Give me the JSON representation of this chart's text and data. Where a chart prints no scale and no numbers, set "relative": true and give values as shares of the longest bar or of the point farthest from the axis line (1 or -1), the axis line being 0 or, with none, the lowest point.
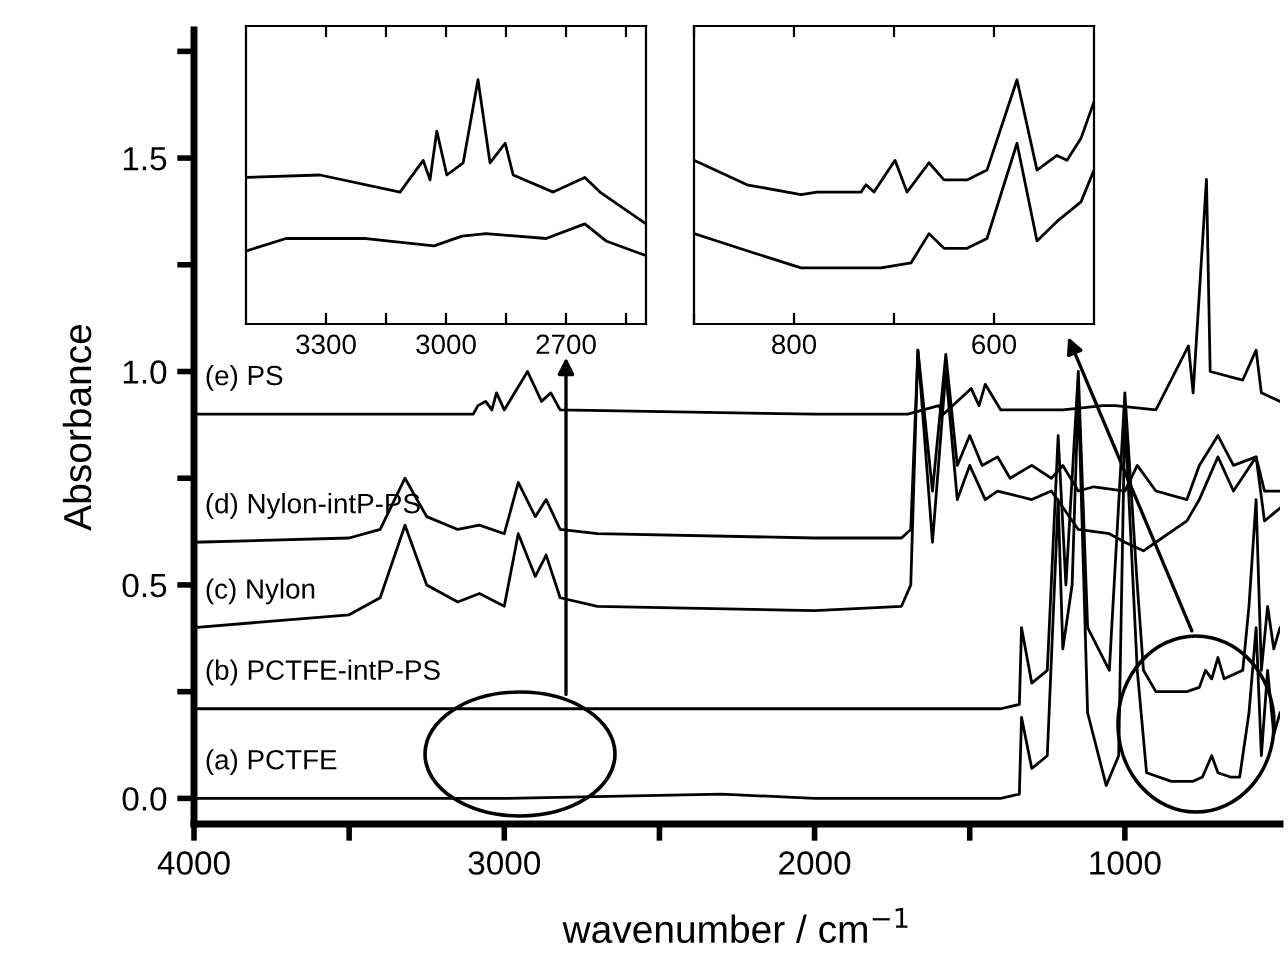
{
  "chart_data": [
    {
      "type": "line",
      "xlabel": "wavenumber / cm$^{−1}$",
      "ylabel": "Absorbance",
      "xlim": [
        4000,
        500
      ],
      "ylim": [
        -0.06,
        1.8
      ],
      "xticks": [
        4000,
        {
          "value": 3500,
          "label": null
        },
        3000,
        {
          "value": 2500,
          "label": null
        },
        2000,
        {
          "value": 1500,
          "label": null
        },
        1000
      ],
      "yticks": [
        {
          "value": 0,
          "label": "0.0"
        },
        {
          "value": 0.25,
          "label": null
        },
        {
          "value": 0.5,
          "label": "0.5"
        },
        {
          "value": 0.75,
          "label": null
        },
        {
          "value": 1,
          "label": "1.0"
        },
        {
          "value": 1.25,
          "label": null
        },
        {
          "value": 1.5,
          "label": "1.5"
        },
        {
          "value": 1.75,
          "label": null
        }
      ],
      "grid": false,
      "legend": false,
      "line_style": "solid",
      "marker": "none",
      "series": [
        {
          "name": "(a) PCTFE",
          "color": "#000000",
          "x": [
            4000,
            3000,
            2300,
            2000,
            1400,
            1340,
            1333,
            1300,
            1250,
            1215,
            1200,
            1170,
            1150,
            1120,
            1060,
            1020,
            1000,
            960,
            930,
            850,
            780,
            750,
            720,
            700,
            660,
            630,
            600,
            577,
            560,
            540,
            520,
            500
          ],
          "values": [
            0,
            0,
            0.01,
            0,
            0,
            0.01,
            0.19,
            0.07,
            0.1,
            0.7,
            0.35,
            0.5,
            0.95,
            0.2,
            0.03,
            0.1,
            0.9,
            0.3,
            0.06,
            0.04,
            0.04,
            0.05,
            0.1,
            0.06,
            0.05,
            0.05,
            0.2,
            0.4,
            0.1,
            0.3,
            0.15,
            0.2
          ]
        },
        {
          "name": "(b) PCTFE-intP-PS",
          "color": "#000000",
          "x": [
            4000,
            3000,
            2000,
            1400,
            1340,
            1333,
            1300,
            1250,
            1215,
            1190,
            1150,
            1120,
            1050,
            1000,
            960,
            940,
            900,
            850,
            800,
            760,
            740,
            720,
            700,
            680,
            620,
            600,
            577,
            560,
            540,
            520,
            500
          ],
          "values": [
            0.21,
            0.21,
            0.21,
            0.21,
            0.22,
            0.4,
            0.27,
            0.3,
            0.85,
            0.5,
            1.0,
            0.4,
            0.3,
            0.95,
            0.5,
            0.3,
            0.25,
            0.25,
            0.25,
            0.26,
            0.3,
            0.28,
            0.33,
            0.28,
            0.3,
            0.45,
            0.7,
            0.3,
            0.45,
            0.35,
            0.4
          ]
        },
        {
          "name": "(c) Nylon",
          "color": "#000000",
          "x": [
            4000,
            3500,
            3400,
            3320,
            3250,
            3150,
            3080,
            3000,
            2955,
            2900,
            2865,
            2820,
            2700,
            2000,
            1720,
            1690,
            1667,
            1620,
            1577,
            1540,
            1500,
            1450,
            1410,
            1300,
            1237,
            1150,
            1050,
            1000,
            940,
            900,
            800,
            760,
            700,
            650,
            577,
            550,
            500
          ],
          "values": [
            0.4,
            0.43,
            0.47,
            0.64,
            0.5,
            0.46,
            0.48,
            0.45,
            0.62,
            0.52,
            0.57,
            0.47,
            0.45,
            0.44,
            0.45,
            0.5,
            1.05,
            0.6,
            1.0,
            0.7,
            0.78,
            0.7,
            0.72,
            0.7,
            0.72,
            0.63,
            0.62,
            0.6,
            0.58,
            0.6,
            0.65,
            0.7,
            0.8,
            0.72,
            0.8,
            0.65,
            0.68
          ]
        },
        {
          "name": "(d) Nylon-intP-PS",
          "color": "#000000",
          "x": [
            4000,
            3500,
            3400,
            3320,
            3250,
            3150,
            3080,
            3000,
            2955,
            2900,
            2865,
            2820,
            2700,
            2000,
            1720,
            1690,
            1667,
            1620,
            1577,
            1540,
            1500,
            1460,
            1410,
            1370,
            1300,
            1237,
            1200,
            1150,
            1100,
            1000,
            960,
            900,
            800,
            760,
            700,
            650,
            577,
            550,
            500
          ],
          "values": [
            0.6,
            0.61,
            0.63,
            0.75,
            0.66,
            0.63,
            0.64,
            0.62,
            0.74,
            0.66,
            0.7,
            0.63,
            0.62,
            0.61,
            0.61,
            0.63,
            1.05,
            0.72,
            1.04,
            0.78,
            0.85,
            0.78,
            0.8,
            0.75,
            0.78,
            0.75,
            0.78,
            0.72,
            0.73,
            0.72,
            0.78,
            0.72,
            0.7,
            0.78,
            0.85,
            0.78,
            0.8,
            0.72,
            0.72
          ]
        },
        {
          "name": "(e) PS",
          "color": "#000000",
          "x": [
            4000,
            3300,
            3100,
            3085,
            3060,
            3040,
            3025,
            3000,
            2925,
            2880,
            2850,
            2820,
            2000,
            1700,
            1600,
            1585,
            1495,
            1470,
            1450,
            1400,
            1200,
            1070,
            1030,
            900,
            795,
            780,
            737,
            725,
            620,
            577,
            560,
            500
          ],
          "values": [
            0.9,
            0.9,
            0.9,
            0.92,
            0.93,
            0.91,
            0.95,
            0.91,
            1.0,
            0.93,
            0.95,
            0.91,
            0.9,
            0.9,
            0.92,
            0.9,
            0.96,
            0.92,
            0.97,
            0.91,
            0.91,
            0.92,
            0.92,
            0.91,
            1.06,
            0.95,
            1.45,
            1.0,
            0.98,
            1.05,
            0.95,
            0.93
          ]
        }
      ]
    },
    {
      "type": "line",
      "relative": true,
      "xlim": [
        3500,
        2500
      ],
      "xticks": [
        3300,
        {
          "value": 3150,
          "label": null
        },
        3000,
        {
          "value": 2850,
          "label": null
        },
        2700,
        {
          "value": 2550,
          "label": null
        }
      ],
      "grid": false,
      "legend": false,
      "tick_labels": "x",
      "series": [
        {
          "color": "#000000",
          "x": [
            3498,
            3315,
            3115,
            3057,
            3040,
            3023,
            2998,
            2957,
            2920,
            2890,
            2852,
            2832,
            2732,
            2653,
            2615,
            2500
          ],
          "values": [
            0.6,
            0.61,
            0.54,
            0.67,
            0.59,
            0.79,
            0.61,
            0.66,
            1.0,
            0.66,
            0.74,
            0.61,
            0.54,
            0.6,
            0.54,
            0.41
          ]
        },
        {
          "color": "#000000",
          "x": [
            3498,
            3400,
            3200,
            3030,
            2960,
            2900,
            2750,
            2653,
            2600,
            2500
          ],
          "values": [
            0.3,
            0.35,
            0.35,
            0.32,
            0.36,
            0.37,
            0.35,
            0.41,
            0.34,
            0.28
          ]
        }
      ]
    },
    {
      "type": "line",
      "relative": true,
      "xlim": [
        900,
        500
      ],
      "xticks": [
        {
          "value": 900,
          "label": null
        },
        800,
        {
          "value": 700,
          "label": null
        },
        600
      ],
      "grid": false,
      "legend": false,
      "tick_labels": "x",
      "series": [
        {
          "color": "#000000",
          "x": [
            900,
            847,
            793,
            777,
            733,
            728,
            720,
            699,
            687,
            665,
            650,
            627,
            607,
            577,
            557,
            537,
            527,
            513,
            500
          ],
          "values": [
            0.67,
            0.57,
            0.53,
            0.54,
            0.54,
            0.57,
            0.54,
            0.67,
            0.54,
            0.66,
            0.59,
            0.59,
            0.63,
            1.0,
            0.63,
            0.69,
            0.67,
            0.76,
            0.91
          ]
        },
        {
          "color": "#000000",
          "x": [
            900,
            847,
            793,
            713,
            683,
            665,
            650,
            627,
            607,
            577,
            557,
            537,
            513,
            500
          ],
          "values": [
            0.37,
            0.3,
            0.23,
            0.23,
            0.25,
            0.37,
            0.31,
            0.31,
            0.35,
            0.74,
            0.34,
            0.42,
            0.5,
            0.63
          ]
        }
      ]
    }
  ]
}
